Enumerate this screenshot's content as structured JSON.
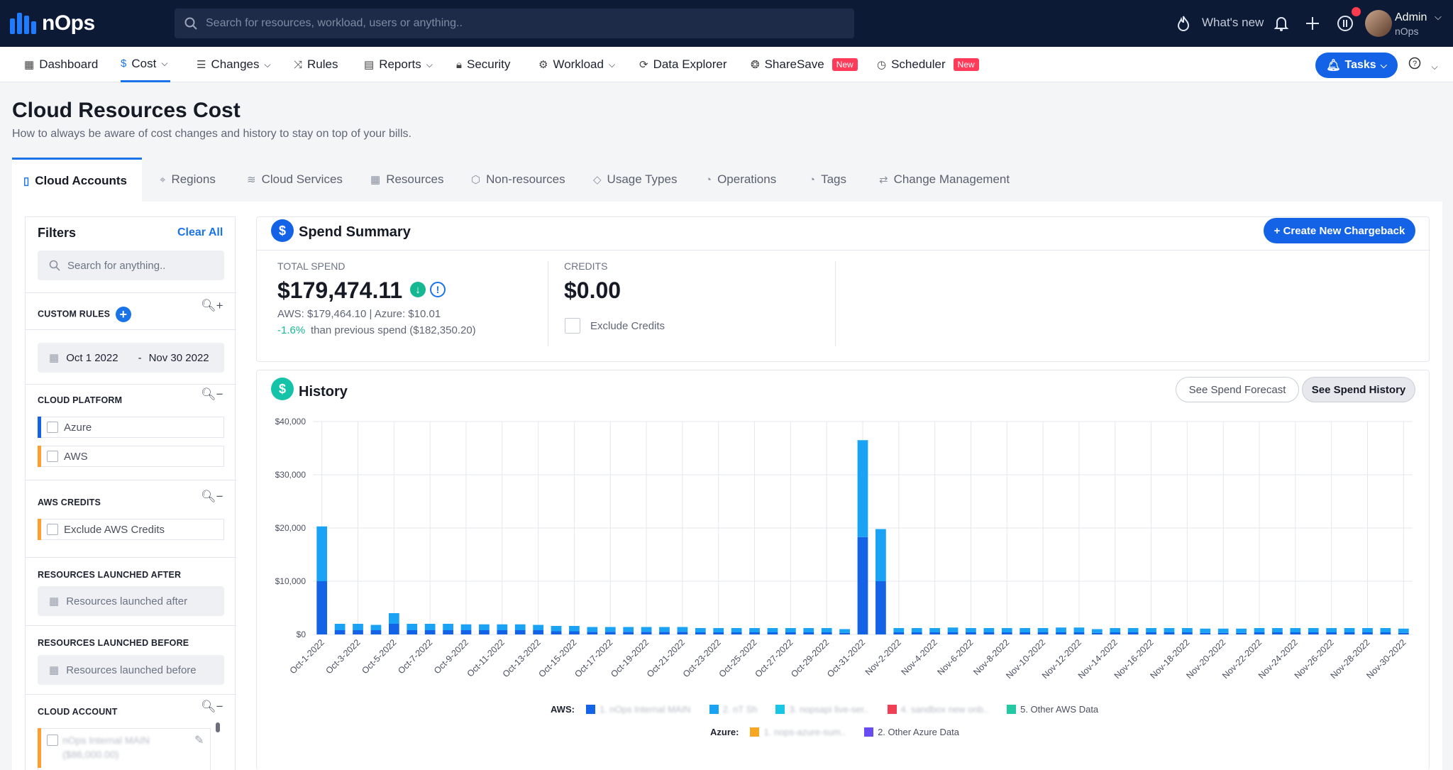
{
  "brand": {
    "name": "nOps"
  },
  "search": {
    "placeholder": "Search for resources, workload, users or anything.."
  },
  "topbar": {
    "whats_new": "What's new",
    "admin_name": "Admin",
    "admin_org": "nOps"
  },
  "nav": {
    "items": [
      {
        "label": "Dashboard"
      },
      {
        "label": "Cost"
      },
      {
        "label": "Changes"
      },
      {
        "label": "Rules"
      },
      {
        "label": "Reports"
      },
      {
        "label": "Security"
      },
      {
        "label": "Workload"
      },
      {
        "label": "Data Explorer"
      },
      {
        "label": "ShareSave",
        "badge": "New"
      },
      {
        "label": "Scheduler",
        "badge": "New"
      }
    ],
    "active": "Cost",
    "tasks_label": "Tasks"
  },
  "page": {
    "title": "Cloud Resources Cost",
    "subtitle": "How to always be aware of cost changes and history to stay on top of your bills."
  },
  "tabs": [
    {
      "label": "Cloud Accounts"
    },
    {
      "label": "Regions"
    },
    {
      "label": "Cloud Services"
    },
    {
      "label": "Resources"
    },
    {
      "label": "Non-resources"
    },
    {
      "label": "Usage Types"
    },
    {
      "label": "Operations"
    },
    {
      "label": "Tags"
    },
    {
      "label": "Change Management"
    }
  ],
  "filters": {
    "title": "Filters",
    "clear_all": "Clear All",
    "search_placeholder": "Search for anything..",
    "custom_rules": "CUSTOM RULES",
    "date_from": "Oct 1 2022",
    "date_sep": "-",
    "date_to": "Nov 30 2022",
    "cloud_platform": "CLOUD PLATFORM",
    "platforms": [
      {
        "label": "Azure",
        "color": "#1463e6"
      },
      {
        "label": "AWS",
        "color": "#ff9d2e"
      }
    ],
    "aws_credits": "AWS CREDITS",
    "exclude_aws_credits": "Exclude AWS Credits",
    "launched_after": "RESOURCES LAUNCHED AFTER",
    "launched_after_placeholder": "Resources launched after",
    "launched_before": "RESOURCES LAUNCHED BEFORE",
    "launched_before_placeholder": "Resources launched before",
    "cloud_account": "CLOUD ACCOUNT",
    "account_line1": "nOps Internal MAIN",
    "account_line2": "($86,000.00)"
  },
  "summary": {
    "title": "Spend Summary",
    "create_button": "+ Create New Chargeback",
    "total_label": "TOTAL SPEND",
    "total_value": "$179,474.11",
    "breakdown": "AWS: $179,464.10 | Azure: $10.01",
    "change_pct": "-1.6%",
    "change_text": "than previous spend ($182,350.20)",
    "credits_label": "CREDITS",
    "credits_value": "$0.00",
    "exclude_credits": "Exclude Credits"
  },
  "history": {
    "title": "History",
    "forecast_btn": "See Spend Forecast",
    "history_btn": "See Spend History"
  },
  "legend": {
    "aws_label": "AWS:",
    "azure_label": "Azure:",
    "aws_items": [
      {
        "label": "1. nOps Internal MAIN",
        "color": "#1463e6",
        "blurred": true
      },
      {
        "label": "2. nT Sh",
        "color": "#1aa3f5",
        "blurred": true
      },
      {
        "label": "3. nopsapi live-ser..",
        "color": "#19c6e6",
        "blurred": true
      },
      {
        "label": "4. sandbox new onb..",
        "color": "#ef4056",
        "blurred": true
      },
      {
        "label": "5. Other AWS Data",
        "color": "#22c9a2",
        "blurred": false
      }
    ],
    "azure_items": [
      {
        "label": "1. nops-azure-sum..",
        "color": "#f5a623",
        "blurred": true
      },
      {
        "label": "2. Other Azure Data",
        "color": "#6a4df2",
        "blurred": false
      }
    ]
  },
  "chart_data": {
    "type": "bar",
    "stacked": true,
    "ylim": [
      0,
      40000
    ],
    "yticks": [
      "$0",
      "$10,000",
      "$20,000",
      "$30,000",
      "$40,000"
    ],
    "grid": true,
    "x": [
      "Oct-1-2022",
      "Oct-2-2022",
      "Oct-3-2022",
      "Oct-4-2022",
      "Oct-5-2022",
      "Oct-6-2022",
      "Oct-7-2022",
      "Oct-8-2022",
      "Oct-9-2022",
      "Oct-10-2022",
      "Oct-11-2022",
      "Oct-12-2022",
      "Oct-13-2022",
      "Oct-14-2022",
      "Oct-15-2022",
      "Oct-16-2022",
      "Oct-17-2022",
      "Oct-18-2022",
      "Oct-19-2022",
      "Oct-20-2022",
      "Oct-21-2022",
      "Oct-22-2022",
      "Oct-23-2022",
      "Oct-24-2022",
      "Oct-25-2022",
      "Oct-26-2022",
      "Oct-27-2022",
      "Oct-28-2022",
      "Oct-29-2022",
      "Oct-30-2022",
      "Oct-31-2022",
      "Nov-1-2022",
      "Nov-2-2022",
      "Nov-3-2022",
      "Nov-4-2022",
      "Nov-5-2022",
      "Nov-6-2022",
      "Nov-7-2022",
      "Nov-8-2022",
      "Nov-9-2022",
      "Nov-10-2022",
      "Nov-11-2022",
      "Nov-12-2022",
      "Nov-13-2022",
      "Nov-14-2022",
      "Nov-15-2022",
      "Nov-16-2022",
      "Nov-17-2022",
      "Nov-18-2022",
      "Nov-19-2022",
      "Nov-20-2022",
      "Nov-21-2022",
      "Nov-22-2022",
      "Nov-23-2022",
      "Nov-24-2022",
      "Nov-25-2022",
      "Nov-26-2022",
      "Nov-27-2022",
      "Nov-28-2022",
      "Nov-29-2022",
      "Nov-30-2022"
    ],
    "xtick_labels": [
      "Oct-1-2022",
      "Oct-3-2022",
      "Oct-5-2022",
      "Oct-7-2022",
      "Oct-9-2022",
      "Oct-11-2022",
      "Oct-13-2022",
      "Oct-15-2022",
      "Oct-17-2022",
      "Oct-19-2022",
      "Oct-21-2022",
      "Oct-23-2022",
      "Oct-25-2022",
      "Oct-27-2022",
      "Oct-29-2022",
      "Oct-31-2022",
      "Nov-2-2022",
      "Nov-4-2022",
      "Nov-6-2022",
      "Nov-8-2022",
      "Nov-10-2022",
      "Nov-12-2022",
      "Nov-14-2022",
      "Nov-16-2022",
      "Nov-18-2022",
      "Nov-20-2022",
      "Nov-22-2022",
      "Nov-24-2022",
      "Nov-26-2022",
      "Nov-28-2022",
      "Nov-30-2022"
    ],
    "series": [
      {
        "color": "#1463e6",
        "values": [
          10000,
          800,
          800,
          800,
          2000,
          800,
          800,
          800,
          800,
          800,
          800,
          800,
          800,
          600,
          600,
          500,
          500,
          500,
          500,
          500,
          500,
          400,
          400,
          400,
          400,
          400,
          400,
          400,
          400,
          300,
          18300,
          10000,
          400,
          400,
          400,
          400,
          400,
          400,
          400,
          400,
          400,
          400,
          400,
          300,
          400,
          400,
          400,
          400,
          400,
          300,
          300,
          300,
          400,
          400,
          400,
          400,
          400,
          400,
          400,
          400,
          300
        ]
      },
      {
        "color": "#1aa3f5",
        "values": [
          10300,
          1200,
          1200,
          1000,
          2000,
          1200,
          1200,
          1200,
          1100,
          1100,
          1100,
          1100,
          1000,
          1000,
          1000,
          900,
          900,
          900,
          900,
          900,
          900,
          800,
          800,
          800,
          800,
          800,
          800,
          800,
          800,
          700,
          18200,
          9800,
          800,
          800,
          800,
          900,
          800,
          800,
          800,
          800,
          800,
          900,
          900,
          700,
          800,
          800,
          800,
          800,
          800,
          800,
          800,
          800,
          800,
          800,
          800,
          800,
          800,
          800,
          800,
          800,
          800
        ]
      }
    ]
  }
}
